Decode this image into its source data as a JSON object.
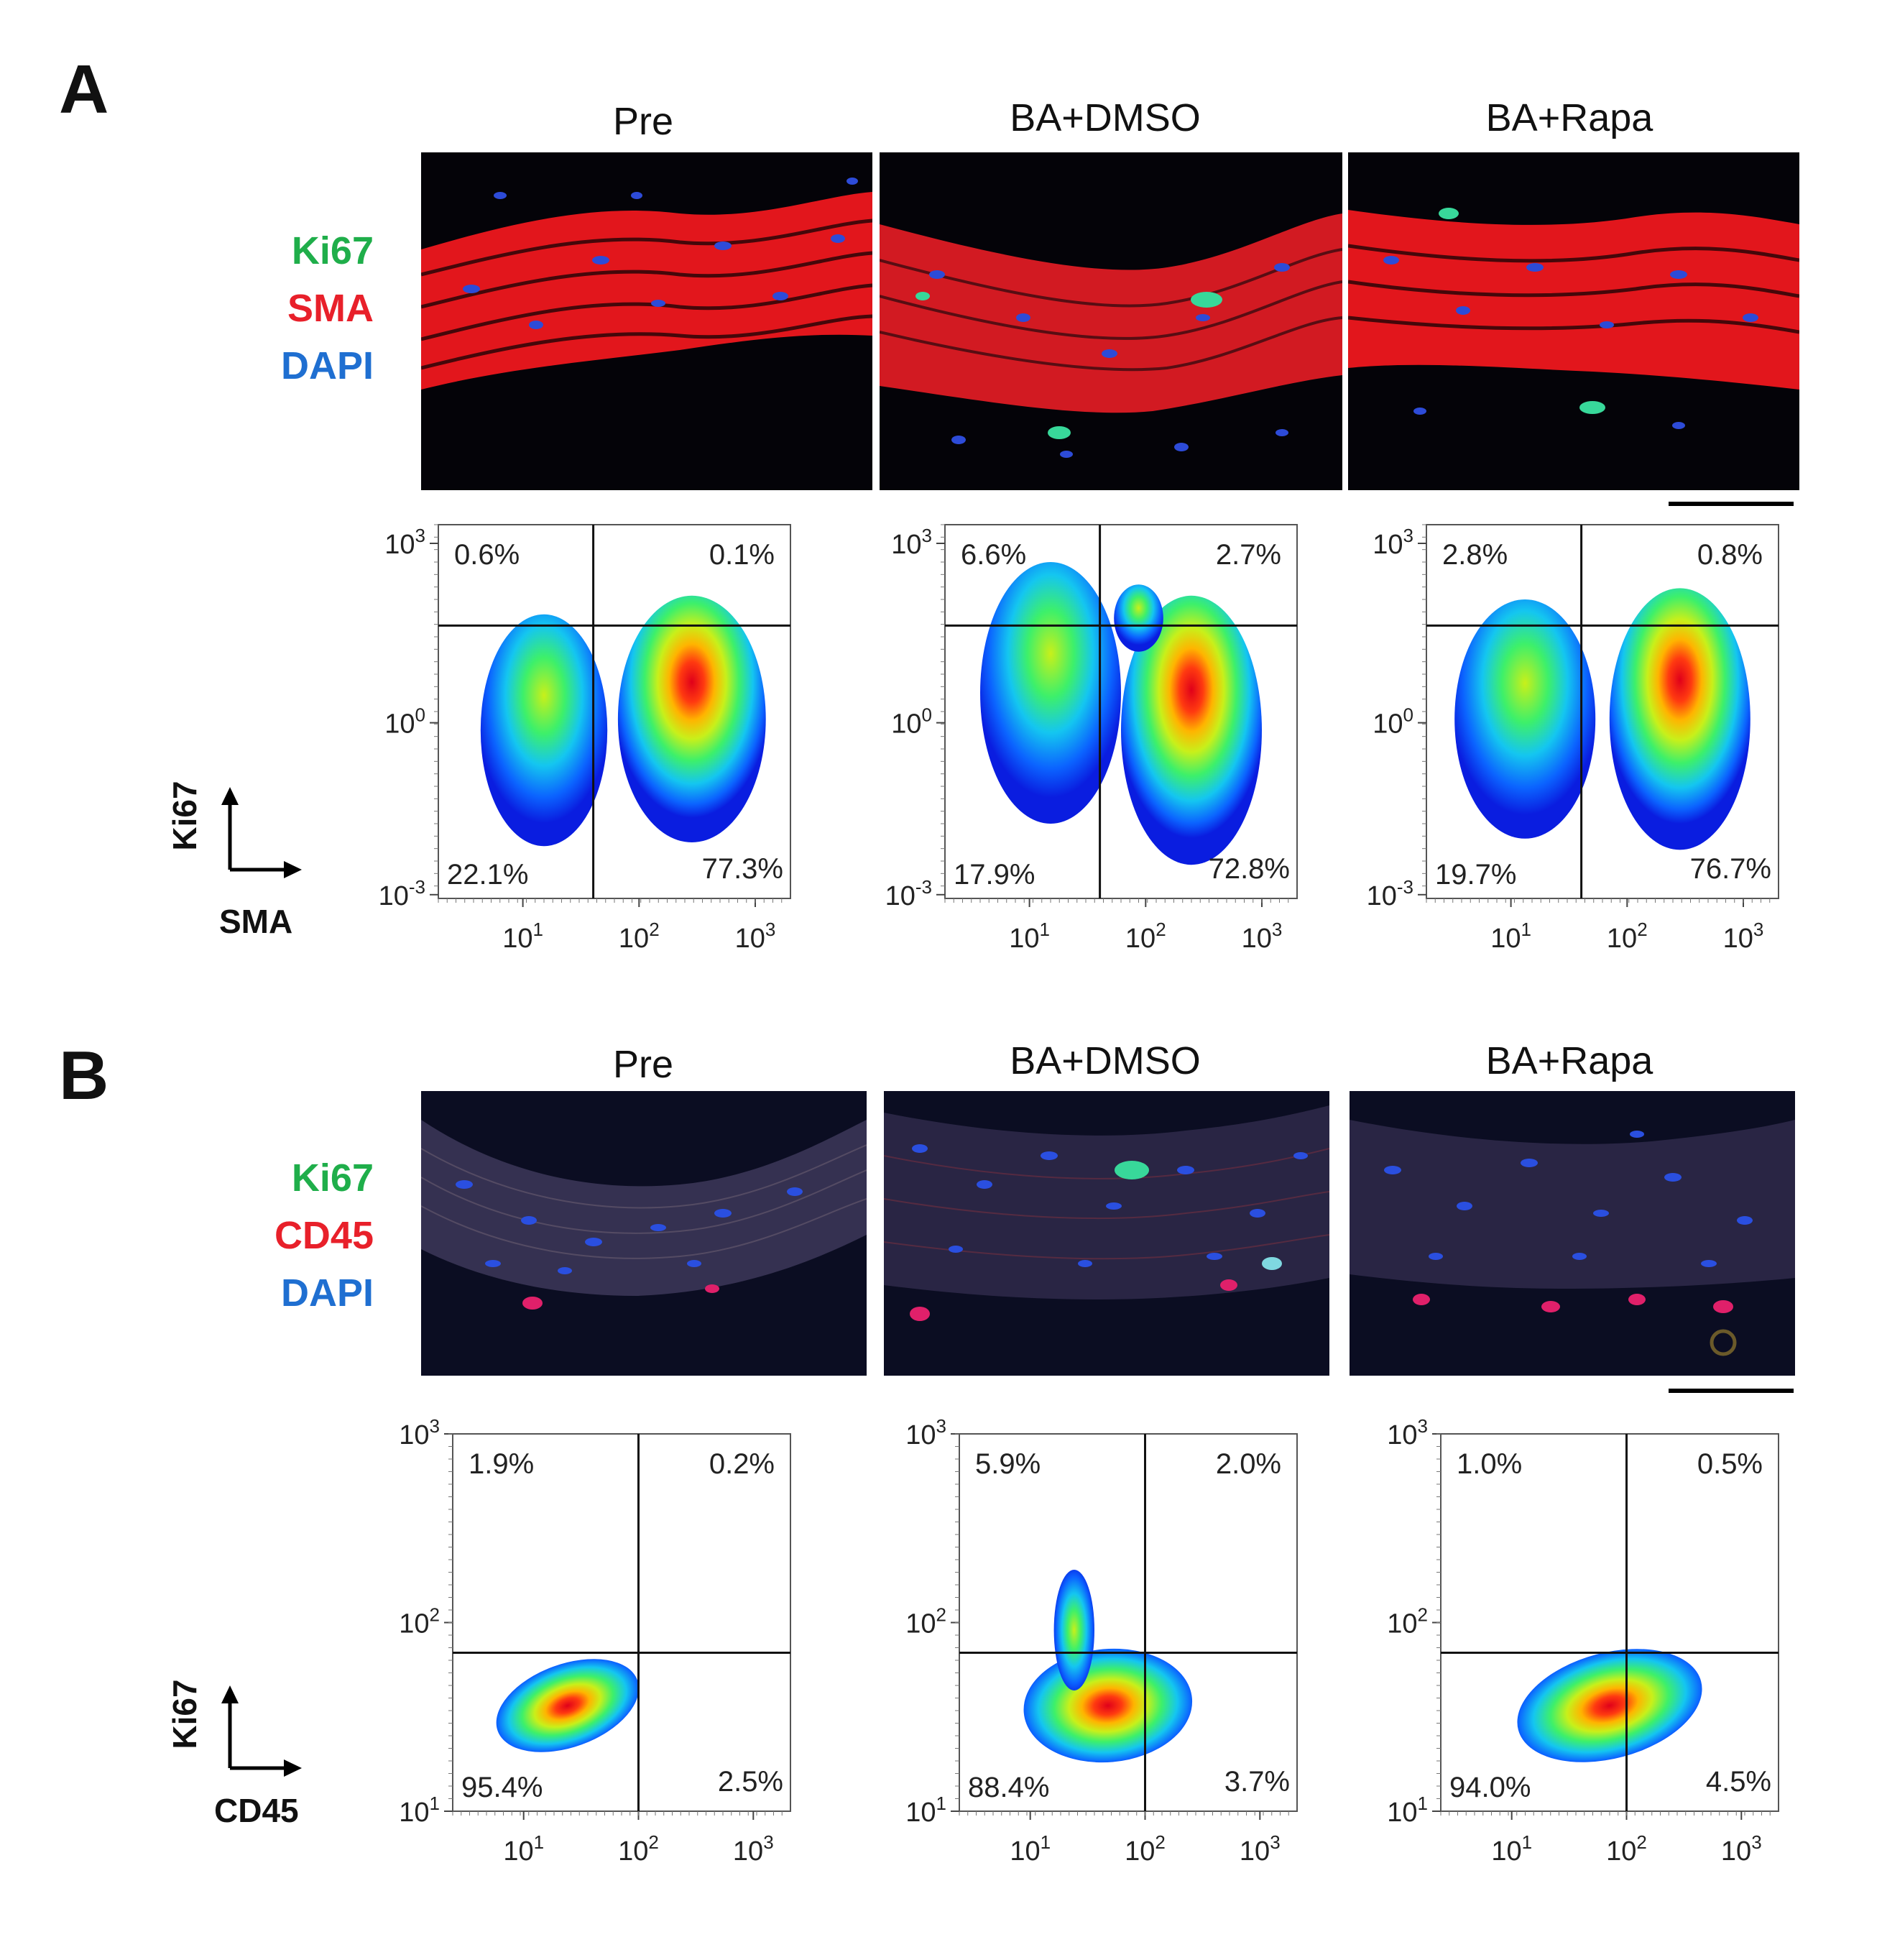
{
  "figure": {
    "panels": [
      {
        "letter": "A",
        "conditions": [
          "Pre",
          "BA+DMSO",
          "BA+Rapa"
        ],
        "markers": [
          {
            "label": "Ki67",
            "color": "#1fae4a"
          },
          {
            "label": "SMA",
            "color": "#e8202a"
          },
          {
            "label": "DAPI",
            "color": "#1f6fd1"
          }
        ],
        "axis_key": {
          "y": "Ki67",
          "x": "SMA"
        }
      },
      {
        "letter": "B",
        "conditions": [
          "Pre",
          "BA+DMSO",
          "BA+Rapa"
        ],
        "markers": [
          {
            "label": "Ki67",
            "color": "#1fae4a"
          },
          {
            "label": "CD45",
            "color": "#e8202a"
          },
          {
            "label": "DAPI",
            "color": "#1f6fd1"
          }
        ],
        "axis_key": {
          "y": "Ki67",
          "x": "CD45"
        }
      }
    ]
  },
  "chart_data": [
    {
      "type": "heatmap",
      "panel": "A",
      "condition": "Pre",
      "x_ticks": [
        "10",
        "10",
        "10"
      ],
      "x_tick_exp": [
        "1",
        "2",
        "3"
      ],
      "y_ticks": [
        "10",
        "10",
        "10"
      ],
      "y_tick_exp": [
        "3",
        "0",
        "-3"
      ],
      "quadrants": {
        "UL": "0.6%",
        "UR": "0.1%",
        "LL": "22.1%",
        "LR": "77.3%"
      }
    },
    {
      "type": "heatmap",
      "panel": "A",
      "condition": "BA+DMSO",
      "x_ticks": [
        "10",
        "10",
        "10"
      ],
      "x_tick_exp": [
        "1",
        "2",
        "3"
      ],
      "y_ticks": [
        "10",
        "10",
        "10"
      ],
      "y_tick_exp": [
        "3",
        "0",
        "-3"
      ],
      "quadrants": {
        "UL": "6.6%",
        "UR": "2.7%",
        "LL": "17.9%",
        "LR": "72.8%"
      }
    },
    {
      "type": "heatmap",
      "panel": "A",
      "condition": "BA+Rapa",
      "x_ticks": [
        "10",
        "10",
        "10"
      ],
      "x_tick_exp": [
        "1",
        "2",
        "3"
      ],
      "y_ticks": [
        "10",
        "10",
        "10"
      ],
      "y_tick_exp": [
        "3",
        "0",
        "-3"
      ],
      "quadrants": {
        "UL": "2.8%",
        "UR": "0.8%",
        "LL": "19.7%",
        "LR": "76.7%"
      }
    },
    {
      "type": "heatmap",
      "panel": "B",
      "condition": "Pre",
      "x_ticks": [
        "10",
        "10",
        "10"
      ],
      "x_tick_exp": [
        "1",
        "2",
        "3"
      ],
      "y_ticks": [
        "10",
        "10",
        "10"
      ],
      "y_tick_exp": [
        "3",
        "2",
        "1"
      ],
      "quadrants": {
        "UL": "1.9%",
        "UR": "0.2%",
        "LL": "95.4%",
        "LR": "2.5%"
      }
    },
    {
      "type": "heatmap",
      "panel": "B",
      "condition": "BA+DMSO",
      "x_ticks": [
        "10",
        "10",
        "10"
      ],
      "x_tick_exp": [
        "1",
        "2",
        "3"
      ],
      "y_ticks": [
        "10",
        "10",
        "10"
      ],
      "y_tick_exp": [
        "3",
        "2",
        "1"
      ],
      "quadrants": {
        "UL": "5.9%",
        "UR": "2.0%",
        "LL": "88.4%",
        "LR": "3.7%"
      }
    },
    {
      "type": "heatmap",
      "panel": "B",
      "condition": "BA+Rapa",
      "x_ticks": [
        "10",
        "10",
        "10"
      ],
      "x_tick_exp": [
        "1",
        "2",
        "3"
      ],
      "y_ticks": [
        "10",
        "10",
        "10"
      ],
      "y_tick_exp": [
        "3",
        "2",
        "1"
      ],
      "quadrants": {
        "UL": "1.0%",
        "UR": "0.5%",
        "LL": "94.0%",
        "LR": "4.5%"
      }
    }
  ]
}
